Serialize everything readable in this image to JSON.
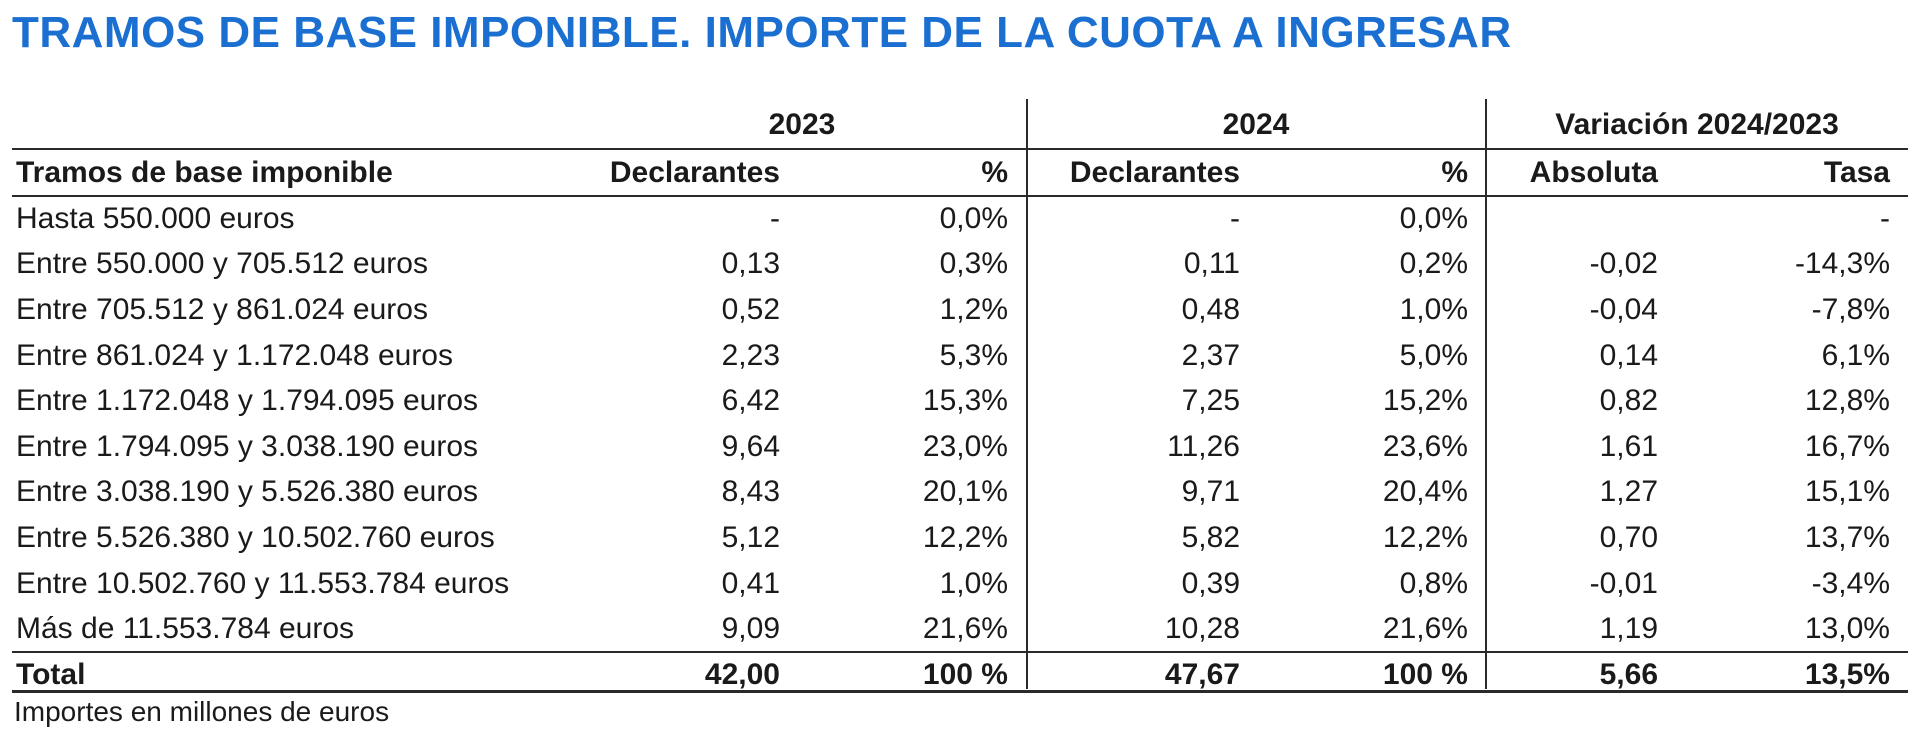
{
  "title": "TRAMOS DE BASE IMPONIBLE. IMPORTE DE LA CUOTA A INGRESAR",
  "year_headers": {
    "y2023": "2023",
    "y2024": "2024",
    "variation": "Variación 2024/2023"
  },
  "column_headers": {
    "tramos": "Tramos de base imponible",
    "decl_2023": "Declarantes",
    "pct_2023": "%",
    "decl_2024": "Declarantes",
    "pct_2024": "%",
    "absoluta": "Absoluta",
    "tasa": "Tasa"
  },
  "rows": [
    {
      "tramo": "Hasta 550.000 euros",
      "decl_2023": "-",
      "pct_2023": "0,0%",
      "decl_2024": "-",
      "pct_2024": "0,0%",
      "absoluta": "",
      "tasa": "-"
    },
    {
      "tramo": "Entre 550.000 y 705.512 euros",
      "decl_2023": "0,13",
      "pct_2023": "0,3%",
      "decl_2024": "0,11",
      "pct_2024": "0,2%",
      "absoluta": "-0,02",
      "tasa": "-14,3%"
    },
    {
      "tramo": "Entre 705.512 y 861.024 euros",
      "decl_2023": "0,52",
      "pct_2023": "1,2%",
      "decl_2024": "0,48",
      "pct_2024": "1,0%",
      "absoluta": "-0,04",
      "tasa": "-7,8%"
    },
    {
      "tramo": "Entre 861.024 y 1.172.048 euros",
      "decl_2023": "2,23",
      "pct_2023": "5,3%",
      "decl_2024": "2,37",
      "pct_2024": "5,0%",
      "absoluta": "0,14",
      "tasa": "6,1%"
    },
    {
      "tramo": "Entre 1.172.048 y 1.794.095 euros",
      "decl_2023": "6,42",
      "pct_2023": "15,3%",
      "decl_2024": "7,25",
      "pct_2024": "15,2%",
      "absoluta": "0,82",
      "tasa": "12,8%"
    },
    {
      "tramo": "Entre 1.794.095 y 3.038.190 euros",
      "decl_2023": "9,64",
      "pct_2023": "23,0%",
      "decl_2024": "11,26",
      "pct_2024": "23,6%",
      "absoluta": "1,61",
      "tasa": "16,7%"
    },
    {
      "tramo": "Entre 3.038.190 y 5.526.380 euros",
      "decl_2023": "8,43",
      "pct_2023": "20,1%",
      "decl_2024": "9,71",
      "pct_2024": "20,4%",
      "absoluta": "1,27",
      "tasa": "15,1%"
    },
    {
      "tramo": "Entre 5.526.380 y 10.502.760 euros",
      "decl_2023": "5,12",
      "pct_2023": "12,2%",
      "decl_2024": "5,82",
      "pct_2024": "12,2%",
      "absoluta": "0,70",
      "tasa": "13,7%"
    },
    {
      "tramo": "Entre 10.502.760 y 11.553.784 euros",
      "decl_2023": "0,41",
      "pct_2023": "1,0%",
      "decl_2024": "0,39",
      "pct_2024": "0,8%",
      "absoluta": "-0,01",
      "tasa": "-3,4%"
    },
    {
      "tramo": "Más de 11.553.784 euros",
      "decl_2023": "9,09",
      "pct_2023": "21,6%",
      "decl_2024": "10,28",
      "pct_2024": "21,6%",
      "absoluta": "1,19",
      "tasa": "13,0%"
    }
  ],
  "total": {
    "tramo": "Total",
    "decl_2023": "42,00",
    "pct_2023": "100 %",
    "decl_2024": "47,67",
    "pct_2024": "100 %",
    "absoluta": "5,66",
    "tasa": "13,5%"
  },
  "footnote": "Importes en millones de euros"
}
